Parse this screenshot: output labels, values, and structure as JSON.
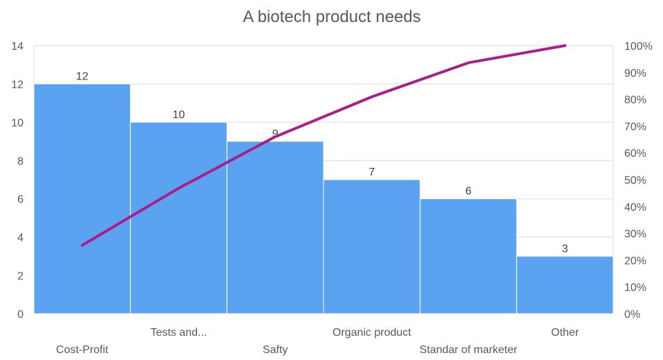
{
  "chart_data": {
    "type": "bar",
    "title": "A biotech product needs",
    "categories": [
      "Cost-Profit",
      "Tests and...",
      "Safty",
      "Organic product",
      "Standar of marketer",
      "Other"
    ],
    "series": [
      {
        "type": "bar",
        "values": [
          12,
          10,
          9,
          7,
          6,
          3
        ]
      },
      {
        "type": "line",
        "axis": "secondary",
        "values": [
          25.5,
          46.8,
          66.0,
          80.9,
          93.6,
          100
        ]
      }
    ],
    "y_ticks": [
      "0",
      "2",
      "4",
      "6",
      "8",
      "10",
      "12",
      "14"
    ],
    "y2_ticks": [
      "0%",
      "10%",
      "20%",
      "30%",
      "40%",
      "50%",
      "60%",
      "70%",
      "80%",
      "90%",
      "100%"
    ],
    "ylim": [
      0,
      14
    ],
    "y2lim": [
      0,
      100
    ],
    "grid": true,
    "legend": "none",
    "colors": {
      "bar": "#5BA3F0",
      "line": "#AA1E8C",
      "grid": "#D9D9D9",
      "text": "#595959"
    }
  }
}
